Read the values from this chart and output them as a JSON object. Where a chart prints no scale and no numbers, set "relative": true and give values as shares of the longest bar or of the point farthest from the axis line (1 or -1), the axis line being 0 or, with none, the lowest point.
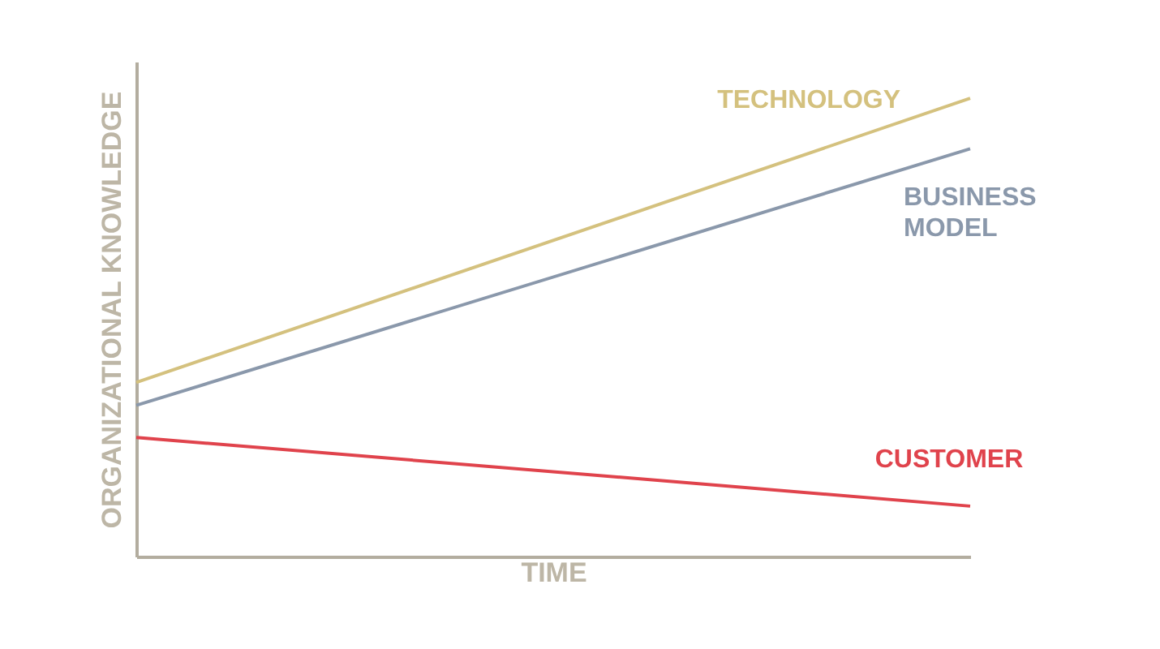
{
  "chart_data": {
    "type": "line",
    "relative": true,
    "xlabel": "TIME",
    "ylabel": "ORGANIZATIONAL KNOWLEDGE",
    "categories": [
      null,
      null
    ],
    "tick_labels": false,
    "legend": false,
    "marker": "none",
    "line_style": "solid",
    "series": [
      {
        "name": "TECHNOLOGY",
        "color": "#d4c17e",
        "values": [
          0.38,
          1
        ]
      },
      {
        "name": "BUSINESS MODEL",
        "color": "#8a98ab",
        "values": [
          0.33,
          0.89
        ]
      },
      {
        "name": "CUSTOMER",
        "color": "#e0434c",
        "values": [
          0.26,
          0.11
        ]
      }
    ]
  }
}
